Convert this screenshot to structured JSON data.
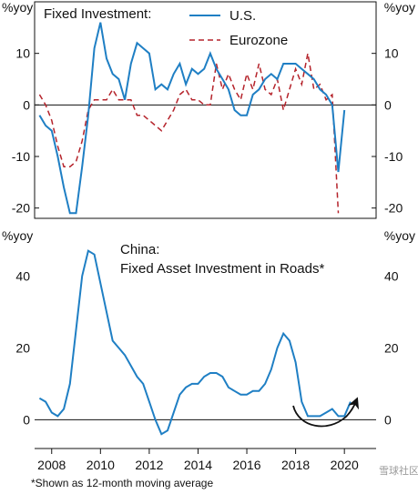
{
  "chart_data": [
    {
      "type": "line",
      "title": "Fixed Investment:",
      "ylabel_left": "%yoy",
      "ylabel_right": "%yoy",
      "ylim": [
        -22,
        20
      ],
      "xlim": [
        2007.3,
        2021.3
      ],
      "yticks": [
        10,
        0,
        -10,
        -20
      ],
      "grid": false,
      "legend_position": "top-right",
      "series": [
        {
          "name": "U.S.",
          "color": "#1f7fc4",
          "style": "solid",
          "points": [
            [
              2007.5,
              -2
            ],
            [
              2007.75,
              -4
            ],
            [
              2008.0,
              -5
            ],
            [
              2008.25,
              -10
            ],
            [
              2008.5,
              -16
            ],
            [
              2008.75,
              -21
            ],
            [
              2009.0,
              -21
            ],
            [
              2009.25,
              -12
            ],
            [
              2009.5,
              -2
            ],
            [
              2009.75,
              11
            ],
            [
              2010.0,
              16
            ],
            [
              2010.25,
              9
            ],
            [
              2010.5,
              6
            ],
            [
              2010.75,
              5
            ],
            [
              2011.0,
              1
            ],
            [
              2011.25,
              8
            ],
            [
              2011.5,
              12
            ],
            [
              2011.75,
              11
            ],
            [
              2012.0,
              10
            ],
            [
              2012.25,
              3
            ],
            [
              2012.5,
              4
            ],
            [
              2012.75,
              3
            ],
            [
              2013.0,
              6
            ],
            [
              2013.25,
              8
            ],
            [
              2013.5,
              4
            ],
            [
              2013.75,
              7
            ],
            [
              2014.0,
              6
            ],
            [
              2014.25,
              7
            ],
            [
              2014.5,
              10
            ],
            [
              2014.75,
              7
            ],
            [
              2015.0,
              5
            ],
            [
              2015.25,
              3
            ],
            [
              2015.5,
              -1
            ],
            [
              2015.75,
              -2
            ],
            [
              2016.0,
              -2
            ],
            [
              2016.25,
              2
            ],
            [
              2016.5,
              3
            ],
            [
              2016.75,
              5
            ],
            [
              2017.0,
              6
            ],
            [
              2017.25,
              5
            ],
            [
              2017.5,
              8
            ],
            [
              2017.75,
              8
            ],
            [
              2018.0,
              8
            ],
            [
              2018.25,
              7
            ],
            [
              2018.5,
              6
            ],
            [
              2018.75,
              5
            ],
            [
              2019.0,
              3
            ],
            [
              2019.25,
              2
            ],
            [
              2019.5,
              0
            ],
            [
              2019.75,
              -13
            ],
            [
              2020.0,
              -1
            ]
          ]
        },
        {
          "name": "Eurozone",
          "color": "#b5232b",
          "style": "dashed",
          "points": [
            [
              2007.5,
              2
            ],
            [
              2007.75,
              0
            ],
            [
              2008.0,
              -3
            ],
            [
              2008.25,
              -8
            ],
            [
              2008.5,
              -12
            ],
            [
              2008.75,
              -12
            ],
            [
              2009.0,
              -11
            ],
            [
              2009.25,
              -7
            ],
            [
              2009.5,
              -1
            ],
            [
              2009.75,
              1
            ],
            [
              2010.0,
              1
            ],
            [
              2010.25,
              1
            ],
            [
              2010.5,
              3
            ],
            [
              2010.75,
              1
            ],
            [
              2011.0,
              1
            ],
            [
              2011.25,
              1
            ],
            [
              2011.5,
              -2
            ],
            [
              2011.75,
              -2
            ],
            [
              2012.0,
              -3
            ],
            [
              2012.25,
              -4
            ],
            [
              2012.5,
              -5
            ],
            [
              2012.75,
              -3
            ],
            [
              2013.0,
              -1
            ],
            [
              2013.25,
              2
            ],
            [
              2013.5,
              3
            ],
            [
              2013.75,
              1
            ],
            [
              2014.0,
              1
            ],
            [
              2014.25,
              0
            ],
            [
              2014.5,
              0
            ],
            [
              2014.75,
              8
            ],
            [
              2015.0,
              3
            ],
            [
              2015.25,
              6
            ],
            [
              2015.5,
              3
            ],
            [
              2015.75,
              1
            ],
            [
              2016.0,
              6
            ],
            [
              2016.25,
              3
            ],
            [
              2016.5,
              8
            ],
            [
              2016.75,
              3
            ],
            [
              2017.0,
              2
            ],
            [
              2017.25,
              5
            ],
            [
              2017.5,
              -1
            ],
            [
              2017.75,
              3
            ],
            [
              2018.0,
              7
            ],
            [
              2018.25,
              4
            ],
            [
              2018.5,
              10
            ],
            [
              2018.75,
              3
            ],
            [
              2019.0,
              4
            ],
            [
              2019.25,
              1
            ],
            [
              2019.5,
              2
            ],
            [
              2019.75,
              -21
            ]
          ]
        }
      ]
    },
    {
      "type": "line",
      "title": "China:",
      "subtitle": "Fixed Asset Investment in Roads*",
      "ylabel_left": "%yoy",
      "ylabel_right": "%yoy",
      "ylim": [
        -8,
        53
      ],
      "xlim": [
        2007.3,
        2021.3
      ],
      "yticks": [
        40,
        20,
        0
      ],
      "xticks": [
        2008,
        2010,
        2012,
        2014,
        2016,
        2018,
        2020
      ],
      "grid": false,
      "annotation": "curved arrow",
      "series": [
        {
          "color": "#1f7fc4",
          "style": "solid",
          "points": [
            [
              2007.5,
              6
            ],
            [
              2007.75,
              5
            ],
            [
              2008.0,
              2
            ],
            [
              2008.25,
              1
            ],
            [
              2008.5,
              3
            ],
            [
              2008.75,
              10
            ],
            [
              2009.0,
              25
            ],
            [
              2009.25,
              40
            ],
            [
              2009.5,
              47
            ],
            [
              2009.75,
              46
            ],
            [
              2010.0,
              38
            ],
            [
              2010.25,
              30
            ],
            [
              2010.5,
              22
            ],
            [
              2010.75,
              20
            ],
            [
              2011.0,
              18
            ],
            [
              2011.25,
              15
            ],
            [
              2011.5,
              12
            ],
            [
              2011.75,
              10
            ],
            [
              2012.0,
              5
            ],
            [
              2012.25,
              0
            ],
            [
              2012.5,
              -4
            ],
            [
              2012.75,
              -3
            ],
            [
              2013.0,
              2
            ],
            [
              2013.25,
              7
            ],
            [
              2013.5,
              9
            ],
            [
              2013.75,
              10
            ],
            [
              2014.0,
              10
            ],
            [
              2014.25,
              12
            ],
            [
              2014.5,
              13
            ],
            [
              2014.75,
              13
            ],
            [
              2015.0,
              12
            ],
            [
              2015.25,
              9
            ],
            [
              2015.5,
              8
            ],
            [
              2015.75,
              7
            ],
            [
              2016.0,
              7
            ],
            [
              2016.25,
              8
            ],
            [
              2016.5,
              8
            ],
            [
              2016.75,
              10
            ],
            [
              2017.0,
              14
            ],
            [
              2017.25,
              20
            ],
            [
              2017.5,
              24
            ],
            [
              2017.75,
              22
            ],
            [
              2018.0,
              16
            ],
            [
              2018.25,
              5
            ],
            [
              2018.5,
              1
            ],
            [
              2018.75,
              1
            ],
            [
              2019.0,
              1
            ],
            [
              2019.25,
              2
            ],
            [
              2019.5,
              3
            ],
            [
              2019.75,
              1
            ],
            [
              2020.0,
              1
            ],
            [
              2020.25,
              5
            ]
          ]
        }
      ]
    }
  ],
  "footnote": "*Shown as 12-month moving average",
  "watermark": "雪球社区"
}
